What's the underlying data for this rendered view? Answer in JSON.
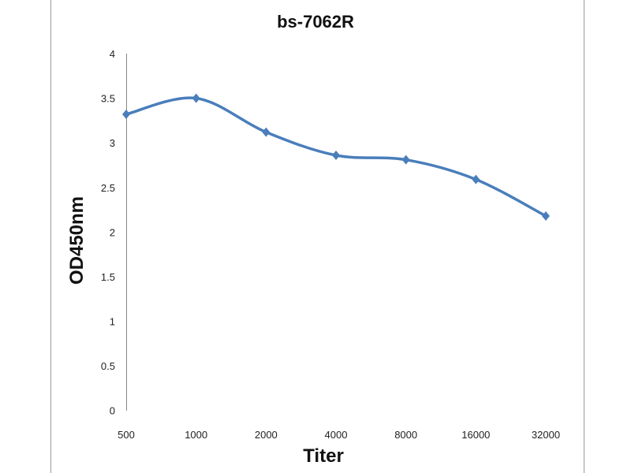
{
  "chart_data": {
    "type": "line",
    "title": "bs-7062R",
    "xlabel": "Titer",
    "ylabel": "OD450nm",
    "categories": [
      "500",
      "1000",
      "2000",
      "4000",
      "8000",
      "16000",
      "32000"
    ],
    "series": [
      {
        "values": [
          3.32,
          3.5,
          3.12,
          2.86,
          2.81,
          2.59,
          2.18
        ]
      }
    ],
    "ylim": [
      0,
      4
    ],
    "yticks": [
      "0",
      "0.5",
      "1",
      "1.5",
      "2",
      "2.5",
      "3",
      "3.5",
      "4"
    ],
    "grid": false,
    "smooth": true,
    "marker": "diamond",
    "color": "#4a7ebb"
  }
}
